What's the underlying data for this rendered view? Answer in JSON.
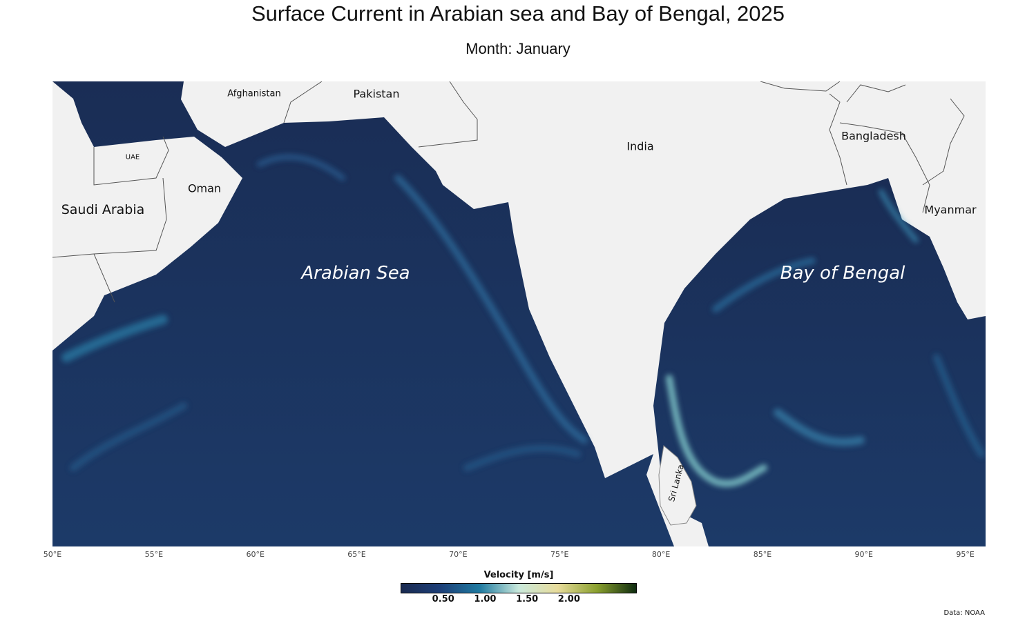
{
  "title": "Surface Current in Arabian sea and Bay of Bengal, 2025",
  "subtitle": "Month: January",
  "map": {
    "lon_range": [
      50,
      96
    ],
    "lon_ticks": [
      "50°E",
      "55°E",
      "60°E",
      "65°E",
      "70°E",
      "75°E",
      "80°E",
      "85°E",
      "90°E",
      "95°E"
    ],
    "countries": {
      "afghanistan": "Afghanistan",
      "pakistan": "Pakistan",
      "india": "India",
      "bangladesh": "Bangladesh",
      "uae": "UAE",
      "oman": "Oman",
      "saudi_arabia": "Saudi Arabia",
      "myanmar": "Myanmar",
      "sri_lanka": "Sri Lanka"
    },
    "seas": {
      "arabian_sea": "Arabian Sea",
      "bay_of_bengal": "Bay of Bengal"
    },
    "colors": {
      "land": "#f1f1f1",
      "no_data": "#7f7f7f",
      "border": "#555555"
    }
  },
  "legend": {
    "title": "Velocity [m/s]",
    "ticks": [
      "0.50",
      "1.00",
      "1.50",
      "2.00"
    ],
    "tick_values": [
      0.5,
      1.0,
      1.5,
      2.0
    ],
    "range": [
      0,
      2.8
    ],
    "colors": [
      "#1a2a50",
      "#1d3f78",
      "#1f7aa0",
      "#c9e9dc",
      "#e8dc9b",
      "#8aa02e",
      "#0f2c10"
    ]
  },
  "credit": "Data: NOAA"
}
